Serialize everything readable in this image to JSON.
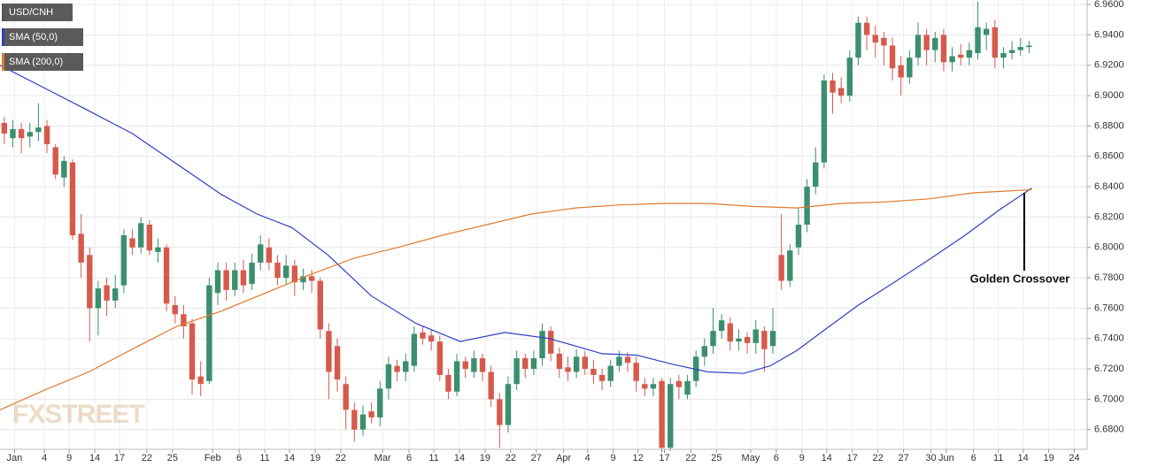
{
  "chart_data": {
    "type": "candlestick",
    "annotation": "Golden Crossover",
    "watermark": "FXSTREET",
    "xlim": [
      -0.5,
      126.8
    ],
    "ylim": [
      6.667,
      6.963
    ],
    "grid": true,
    "xticks": [
      {
        "value": 1.2,
        "label": "Jan"
      },
      {
        "value": 4.7,
        "label": "4"
      },
      {
        "value": 7.6,
        "label": "9"
      },
      {
        "value": 10.6,
        "label": "14"
      },
      {
        "value": 13.5,
        "label": "17"
      },
      {
        "value": 16.7,
        "label": "22"
      },
      {
        "value": 19.7,
        "label": "25"
      },
      {
        "value": 24.4,
        "label": "Feb"
      },
      {
        "value": 27.5,
        "label": "6"
      },
      {
        "value": 30.5,
        "label": "11"
      },
      {
        "value": 33.4,
        "label": "14"
      },
      {
        "value": 36.4,
        "label": "19"
      },
      {
        "value": 39.4,
        "label": "22"
      },
      {
        "value": 44.3,
        "label": "Mar"
      },
      {
        "value": 47.4,
        "label": "6"
      },
      {
        "value": 50.3,
        "label": "11"
      },
      {
        "value": 53.3,
        "label": "14"
      },
      {
        "value": 56.3,
        "label": "19"
      },
      {
        "value": 59.3,
        "label": "22"
      },
      {
        "value": 62.3,
        "label": "27"
      },
      {
        "value": 65.5,
        "label": "Apr"
      },
      {
        "value": 68.3,
        "label": "4"
      },
      {
        "value": 71.3,
        "label": "9"
      },
      {
        "value": 74.2,
        "label": "12"
      },
      {
        "value": 77.3,
        "label": "17"
      },
      {
        "value": 80.4,
        "label": "22"
      },
      {
        "value": 83.4,
        "label": "25"
      },
      {
        "value": 87.4,
        "label": "May"
      },
      {
        "value": 90.4,
        "label": "6"
      },
      {
        "value": 93.4,
        "label": "9"
      },
      {
        "value": 96.3,
        "label": "14"
      },
      {
        "value": 99.3,
        "label": "17"
      },
      {
        "value": 102.3,
        "label": "22"
      },
      {
        "value": 105.3,
        "label": "27"
      },
      {
        "value": 108.5,
        "label": "30"
      },
      {
        "value": 110.3,
        "label": "Jun"
      },
      {
        "value": 113.5,
        "label": "6"
      },
      {
        "value": 116.4,
        "label": "11"
      },
      {
        "value": 119.3,
        "label": "14"
      },
      {
        "value": 122.3,
        "label": "19"
      },
      {
        "value": 125.3,
        "label": "24"
      }
    ],
    "yticks": [
      {
        "value": 6.68,
        "label": "6.6800"
      },
      {
        "value": 6.7,
        "label": "6.7000"
      },
      {
        "value": 6.72,
        "label": "6.7200"
      },
      {
        "value": 6.74,
        "label": "6.7400"
      },
      {
        "value": 6.76,
        "label": "6.7600"
      },
      {
        "value": 6.78,
        "label": "6.7800"
      },
      {
        "value": 6.8,
        "label": "6.8000"
      },
      {
        "value": 6.82,
        "label": "6.8200"
      },
      {
        "value": 6.84,
        "label": "6.8400"
      },
      {
        "value": 6.86,
        "label": "6.8600"
      },
      {
        "value": 6.88,
        "label": "6.8800"
      },
      {
        "value": 6.9,
        "label": "6.9000"
      },
      {
        "value": 6.92,
        "label": "6.9200"
      },
      {
        "value": 6.94,
        "label": "6.9400"
      },
      {
        "value": 6.96,
        "label": "6.9600"
      }
    ],
    "series": [
      {
        "name": "USD/CNH",
        "color": "#555555",
        "up_color": "#3b8f6f",
        "down_color": "#d65a4c",
        "ohlc": [
          [
            6.882,
            6.886,
            6.868,
            6.875
          ],
          [
            6.872,
            6.884,
            6.866,
            6.878
          ],
          [
            6.878,
            6.882,
            6.862,
            6.872
          ],
          [
            6.873,
            6.882,
            6.866,
            6.876
          ],
          [
            6.876,
            6.895,
            6.87,
            6.879
          ],
          [
            6.88,
            6.884,
            6.862,
            6.868
          ],
          [
            6.866,
            6.868,
            6.845,
            6.848
          ],
          [
            6.846,
            6.86,
            6.84,
            6.857
          ],
          [
            6.856,
            6.858,
            6.805,
            6.808
          ],
          [
            6.809,
            6.822,
            6.78,
            6.79
          ],
          [
            6.795,
            6.8,
            6.738,
            6.76
          ],
          [
            6.76,
            6.778,
            6.742,
            6.773
          ],
          [
            6.775,
            6.78,
            6.755,
            6.765
          ],
          [
            6.765,
            6.782,
            6.76,
            6.773
          ],
          [
            6.775,
            6.812,
            6.77,
            6.808
          ],
          [
            6.806,
            6.812,
            6.795,
            6.8
          ],
          [
            6.8,
            6.82,
            6.796,
            6.816
          ],
          [
            6.815,
            6.818,
            6.795,
            6.798
          ],
          [
            6.797,
            6.806,
            6.79,
            6.8
          ],
          [
            6.8,
            6.802,
            6.758,
            6.763
          ],
          [
            6.762,
            6.768,
            6.75,
            6.756
          ],
          [
            6.756,
            6.762,
            6.74,
            6.748
          ],
          [
            6.75,
            6.753,
            6.703,
            6.713
          ],
          [
            6.715,
            6.725,
            6.702,
            6.71
          ],
          [
            6.712,
            6.78,
            6.71,
            6.775
          ],
          [
            6.77,
            6.79,
            6.762,
            6.785
          ],
          [
            6.785,
            6.79,
            6.765,
            6.772
          ],
          [
            6.772,
            6.79,
            6.768,
            6.785
          ],
          [
            6.785,
            6.792,
            6.77,
            6.775
          ],
          [
            6.776,
            6.796,
            6.772,
            6.79
          ],
          [
            6.79,
            6.808,
            6.785,
            6.802
          ],
          [
            6.8,
            6.806,
            6.785,
            6.79
          ],
          [
            6.79,
            6.795,
            6.775,
            6.78
          ],
          [
            6.78,
            6.795,
            6.776,
            6.788
          ],
          [
            6.788,
            6.792,
            6.768,
            6.777
          ],
          [
            6.777,
            6.786,
            6.772,
            6.781
          ],
          [
            6.781,
            6.785,
            6.77,
            6.778
          ],
          [
            6.778,
            6.78,
            6.74,
            6.746
          ],
          [
            6.745,
            6.75,
            6.7,
            6.718
          ],
          [
            6.735,
            6.74,
            6.705,
            6.713
          ],
          [
            6.71,
            6.715,
            6.68,
            6.693
          ],
          [
            6.693,
            6.698,
            6.672,
            6.68
          ],
          [
            6.68,
            6.696,
            6.676,
            6.69
          ],
          [
            6.692,
            6.698,
            6.684,
            6.688
          ],
          [
            6.688,
            6.712,
            6.682,
            6.707
          ],
          [
            6.707,
            6.728,
            6.7,
            6.723
          ],
          [
            6.722,
            6.726,
            6.712,
            6.718
          ],
          [
            6.718,
            6.73,
            6.712,
            6.725
          ],
          [
            6.722,
            6.748,
            6.718,
            6.743
          ],
          [
            6.744,
            6.748,
            6.736,
            6.74
          ],
          [
            6.742,
            6.746,
            6.732,
            6.738
          ],
          [
            6.738,
            6.742,
            6.712,
            6.716
          ],
          [
            6.716,
            6.72,
            6.7,
            6.705
          ],
          [
            6.705,
            6.73,
            6.702,
            6.725
          ],
          [
            6.725,
            6.728,
            6.714,
            6.72
          ],
          [
            6.718,
            6.732,
            6.714,
            6.727
          ],
          [
            6.727,
            6.73,
            6.712,
            6.718
          ],
          [
            6.718,
            6.722,
            6.695,
            6.7
          ],
          [
            6.7,
            6.704,
            6.668,
            6.683
          ],
          [
            6.683,
            6.715,
            6.678,
            6.71
          ],
          [
            6.71,
            6.732,
            6.706,
            6.727
          ],
          [
            6.727,
            6.73,
            6.714,
            6.72
          ],
          [
            6.72,
            6.732,
            6.716,
            6.727
          ],
          [
            6.727,
            6.75,
            6.722,
            6.745
          ],
          [
            6.745,
            6.748,
            6.725,
            6.73
          ],
          [
            6.73,
            6.734,
            6.714,
            6.72
          ],
          [
            6.721,
            6.728,
            6.712,
            6.718
          ],
          [
            6.718,
            6.733,
            6.714,
            6.728
          ],
          [
            6.728,
            6.732,
            6.716,
            6.72
          ],
          [
            6.72,
            6.726,
            6.71,
            6.716
          ],
          [
            6.716,
            6.72,
            6.706,
            6.712
          ],
          [
            6.712,
            6.726,
            6.708,
            6.722
          ],
          [
            6.722,
            6.732,
            6.718,
            6.728
          ],
          [
            6.728,
            6.731,
            6.718,
            6.724
          ],
          [
            6.724,
            6.728,
            6.705,
            6.712
          ],
          [
            6.71,
            6.714,
            6.702,
            6.707
          ],
          [
            6.707,
            6.714,
            6.702,
            6.71
          ],
          [
            6.712,
            6.714,
            6.665,
            6.668
          ],
          [
            6.668,
            6.714,
            6.666,
            6.71
          ],
          [
            6.712,
            6.716,
            6.7,
            6.708
          ],
          [
            6.703,
            6.716,
            6.7,
            6.712
          ],
          [
            6.712,
            6.732,
            6.708,
            6.728
          ],
          [
            6.728,
            6.74,
            6.722,
            6.735
          ],
          [
            6.735,
            6.76,
            6.73,
            6.745
          ],
          [
            6.745,
            6.756,
            6.74,
            6.752
          ],
          [
            6.75,
            6.754,
            6.732,
            6.738
          ],
          [
            6.738,
            6.746,
            6.732,
            6.74
          ],
          [
            6.741,
            6.744,
            6.73,
            6.737
          ],
          [
            6.737,
            6.752,
            6.73,
            6.746
          ],
          [
            6.745,
            6.748,
            6.718,
            6.733
          ],
          [
            6.735,
            6.76,
            6.73,
            6.745
          ],
          [
            6.795,
            6.822,
            6.772,
            6.778
          ],
          [
            6.778,
            6.802,
            6.774,
            6.798
          ],
          [
            6.8,
            6.826,
            6.795,
            6.815
          ],
          [
            6.815,
            6.845,
            6.81,
            6.84
          ],
          [
            6.84,
            6.866,
            6.835,
            6.856
          ],
          [
            6.856,
            6.914,
            6.852,
            6.91
          ],
          [
            6.91,
            6.915,
            6.888,
            6.902
          ],
          [
            6.905,
            6.912,
            6.895,
            6.9
          ],
          [
            6.9,
            6.93,
            6.896,
            6.925
          ],
          [
            6.925,
            6.952,
            6.92,
            6.948
          ],
          [
            6.948,
            6.952,
            6.93,
            6.94
          ],
          [
            6.94,
            6.946,
            6.925,
            6.935
          ],
          [
            6.938,
            6.942,
            6.92,
            6.933
          ],
          [
            6.933,
            6.938,
            6.91,
            6.918
          ],
          [
            6.92,
            6.926,
            6.9,
            6.912
          ],
          [
            6.912,
            6.93,
            6.908,
            6.925
          ],
          [
            6.925,
            6.948,
            6.92,
            6.94
          ],
          [
            6.94,
            6.944,
            6.92,
            6.93
          ],
          [
            6.93,
            6.942,
            6.922,
            6.938
          ],
          [
            6.94,
            6.944,
            6.916,
            6.922
          ],
          [
            6.922,
            6.932,
            6.916,
            6.926
          ],
          [
            6.927,
            6.934,
            6.92,
            6.925
          ],
          [
            6.925,
            6.935,
            6.92,
            6.93
          ],
          [
            6.928,
            6.962,
            6.924,
            6.945
          ],
          [
            6.94,
            6.948,
            6.93,
            6.944
          ],
          [
            6.945,
            6.95,
            6.918,
            6.925
          ],
          [
            6.925,
            6.932,
            6.918,
            6.928
          ],
          [
            6.928,
            6.936,
            6.924,
            6.93
          ],
          [
            6.93,
            6.938,
            6.926,
            6.932
          ],
          [
            6.932,
            6.936,
            6.928,
            6.933
          ]
        ]
      },
      {
        "name": "SMA (50,0)",
        "color": "#2a3fc4",
        "x": [
          -0.5,
          4.7,
          9.9,
          15.0,
          20.2,
          25.4,
          29.6,
          33.7,
          37.9,
          43.0,
          48.2,
          53.4,
          58.6,
          63.8,
          70.0,
          74.1,
          78.3,
          82.4,
          86.6,
          89.7,
          92.8,
          95.9,
          100.0,
          104.2,
          108.3,
          112.5,
          116.6,
          120.3
        ],
        "values": [
          6.92,
          6.905,
          6.89,
          6.875,
          6.855,
          6.835,
          6.822,
          6.813,
          6.795,
          6.768,
          6.75,
          6.738,
          6.744,
          6.74,
          6.73,
          6.729,
          6.723,
          6.718,
          6.717,
          6.722,
          6.732,
          6.745,
          6.762,
          6.777,
          6.792,
          6.808,
          6.825,
          6.839
        ]
      },
      {
        "name": "SMA (200,0)",
        "color": "#e07a2a",
        "x": [
          -0.5,
          4.7,
          9.9,
          15.0,
          20.2,
          25.4,
          30.6,
          35.8,
          41.0,
          46.1,
          51.3,
          56.5,
          61.7,
          66.9,
          72.1,
          77.2,
          82.4,
          87.6,
          92.8,
          98.0,
          103.2,
          108.3,
          113.5,
          120.3
        ],
        "values": [
          6.693,
          6.706,
          6.718,
          6.733,
          6.748,
          6.758,
          6.77,
          6.782,
          6.793,
          6.8,
          6.808,
          6.815,
          6.822,
          6.826,
          6.828,
          6.829,
          6.829,
          6.827,
          6.826,
          6.829,
          6.83,
          6.832,
          6.836,
          6.838
        ]
      }
    ]
  }
}
